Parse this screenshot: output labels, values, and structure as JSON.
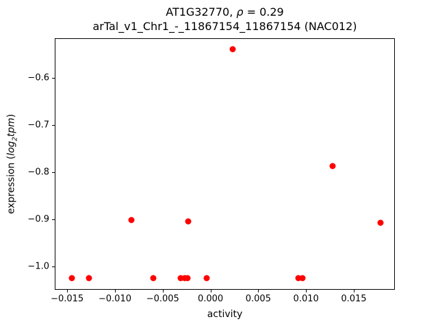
{
  "title": {
    "line1_gene": "AT1G32770, ",
    "line1_rho_symbol": "ρ",
    "line1_rho_value": " = 0.29",
    "line2": "arTal_v1_Chr1_-_11867154_11867154 (NAC012)"
  },
  "ylabel": {
    "prefix": "expression (",
    "log": "log",
    "sub": "2",
    "tpm": "tpm",
    "suffix": ")"
  },
  "chart_data": {
    "type": "scatter",
    "title": "AT1G32770, ρ = 0.29",
    "subtitle": "arTal_v1_Chr1_-_11867154_11867154 (NAC012)",
    "xlabel": "activity",
    "ylabel": "expression (log2 tpm)",
    "xlim": [
      -0.0163,
      0.0193
    ],
    "ylim": [
      -1.05,
      -0.515
    ],
    "grid": false,
    "legend": "none",
    "marker_color": "#ff0000",
    "xticks": [
      {
        "v": -0.015,
        "label": "−0.015"
      },
      {
        "v": -0.01,
        "label": "−0.010"
      },
      {
        "v": -0.005,
        "label": "−0.005"
      },
      {
        "v": 0.0,
        "label": "0.000"
      },
      {
        "v": 0.005,
        "label": "0.005"
      },
      {
        "v": 0.01,
        "label": "0.010"
      },
      {
        "v": 0.015,
        "label": "0.015"
      }
    ],
    "yticks": [
      {
        "v": -1.0,
        "label": "−1.0"
      },
      {
        "v": -0.9,
        "label": "−0.9"
      },
      {
        "v": -0.8,
        "label": "−0.8"
      },
      {
        "v": -0.7,
        "label": "−0.7"
      },
      {
        "v": -0.6,
        "label": "−0.6"
      }
    ],
    "points": [
      [
        -0.0145,
        -1.025
      ],
      [
        -0.0127,
        -1.025
      ],
      [
        -0.0083,
        -0.902
      ],
      [
        -0.006,
        -1.025
      ],
      [
        -0.0031,
        -1.025
      ],
      [
        -0.0027,
        -1.025
      ],
      [
        -0.0024,
        -1.025
      ],
      [
        -0.0023,
        -0.905
      ],
      [
        -0.0004,
        -1.025
      ],
      [
        0.0023,
        -0.538
      ],
      [
        0.0092,
        -1.025
      ],
      [
        0.0096,
        -1.025
      ],
      [
        0.0128,
        -0.787
      ],
      [
        0.0178,
        -0.908
      ]
    ]
  }
}
